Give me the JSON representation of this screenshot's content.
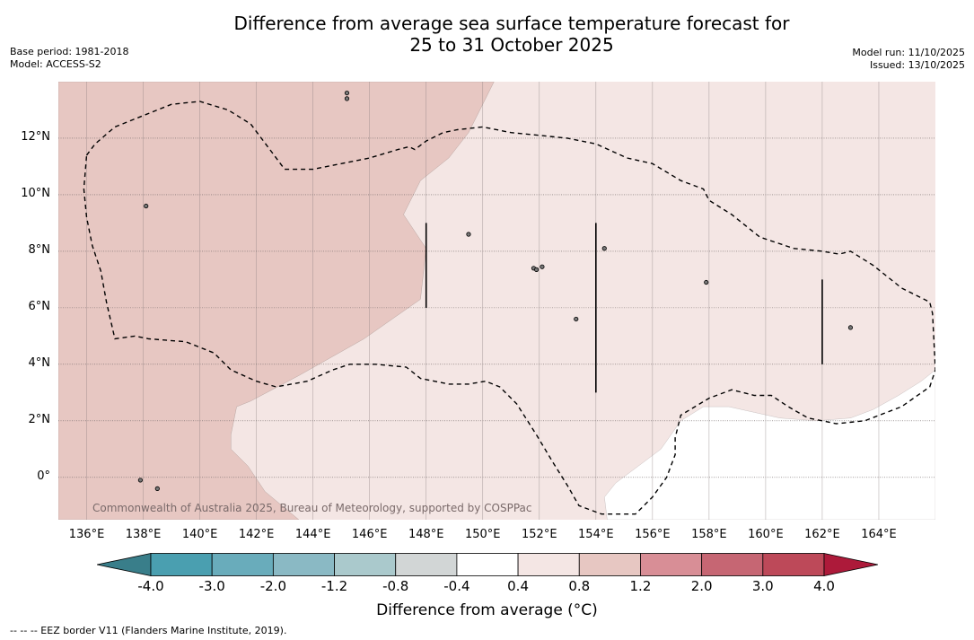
{
  "title_line1": "Difference from average sea surface temperature forecast for",
  "title_line2": "25 to 31 October 2025",
  "meta_left": {
    "base_period": "Base period: 1981-2018",
    "model": "Model: ACCESS-S2"
  },
  "meta_right": {
    "model_run": "Model run: 11/10/2025",
    "issued": "Issued: 13/10/2025"
  },
  "copyright": "Commonwealth of Australia 2025, Bureau of Meteorology, supported by COSPPac",
  "map": {
    "extent": {
      "lon_min": 135.0,
      "lon_max": 166.0,
      "lat_min": -1.5,
      "lat_max": 14.0
    },
    "lon_ticks": [
      {
        "value": 136,
        "label": "136°E"
      },
      {
        "value": 138,
        "label": "138°E"
      },
      {
        "value": 140,
        "label": "140°E"
      },
      {
        "value": 142,
        "label": "142°E"
      },
      {
        "value": 144,
        "label": "144°E"
      },
      {
        "value": 146,
        "label": "146°E"
      },
      {
        "value": 148,
        "label": "148°E"
      },
      {
        "value": 150,
        "label": "150°E"
      },
      {
        "value": 152,
        "label": "152°E"
      },
      {
        "value": 154,
        "label": "154°E"
      },
      {
        "value": 156,
        "label": "156°E"
      },
      {
        "value": 158,
        "label": "158°E"
      },
      {
        "value": 160,
        "label": "160°E"
      },
      {
        "value": 162,
        "label": "162°E"
      },
      {
        "value": 164,
        "label": "164°E"
      }
    ],
    "lat_ticks": [
      {
        "value": 12,
        "label": "12°N"
      },
      {
        "value": 10,
        "label": "10°N"
      },
      {
        "value": 8,
        "label": "8°N"
      },
      {
        "value": 6,
        "label": "6°N"
      },
      {
        "value": 4,
        "label": "4°N"
      },
      {
        "value": 2,
        "label": "2°N"
      },
      {
        "value": 0,
        "label": "0°"
      }
    ],
    "colors": {
      "band_0_8_1_2": "#e7c7c2",
      "band_0_4_0_8": "#f4e6e4",
      "band_neg_0_4_0_4": "#ffffff"
    },
    "warm_region_lonlat": [
      [
        135.0,
        14.0
      ],
      [
        150.4,
        14.0
      ],
      [
        149.5,
        12.2
      ],
      [
        148.8,
        11.3
      ],
      [
        147.8,
        10.5
      ],
      [
        147.2,
        9.3
      ],
      [
        148.0,
        8.1
      ],
      [
        147.8,
        6.3
      ],
      [
        145.8,
        4.9
      ],
      [
        143.5,
        3.6
      ],
      [
        141.8,
        2.7
      ],
      [
        141.3,
        2.5
      ],
      [
        141.1,
        1.5
      ],
      [
        141.1,
        1.0
      ],
      [
        141.7,
        0.4
      ],
      [
        142.3,
        -0.5
      ],
      [
        143.5,
        -1.5
      ],
      [
        135.0,
        -1.5
      ]
    ],
    "white_region_lonlat": [
      [
        166.0,
        -1.5
      ],
      [
        154.4,
        -1.5
      ],
      [
        154.3,
        -0.7
      ],
      [
        154.7,
        -0.2
      ],
      [
        155.5,
        0.4
      ],
      [
        156.3,
        1.0
      ],
      [
        157.0,
        2.0
      ],
      [
        157.8,
        2.5
      ],
      [
        158.7,
        2.5
      ],
      [
        159.6,
        2.3
      ],
      [
        160.5,
        2.1
      ],
      [
        161.8,
        2.0
      ],
      [
        163.0,
        2.1
      ],
      [
        163.8,
        2.4
      ],
      [
        164.7,
        2.9
      ],
      [
        165.5,
        3.4
      ],
      [
        166.0,
        3.8
      ]
    ],
    "eez_west_lonlat": [
      [
        136.0,
        11.4
      ],
      [
        136.3,
        11.8
      ],
      [
        137.0,
        12.4
      ],
      [
        138.0,
        12.8
      ],
      [
        139.0,
        13.2
      ],
      [
        140.0,
        13.3
      ],
      [
        141.0,
        13.0
      ],
      [
        141.8,
        12.5
      ],
      [
        143.0,
        10.9
      ],
      [
        144.0,
        10.9
      ],
      [
        145.0,
        11.1
      ],
      [
        146.0,
        11.3
      ],
      [
        147.0,
        11.6
      ],
      [
        147.4,
        11.7
      ],
      [
        147.6,
        11.6
      ],
      [
        148.0,
        11.9
      ],
      [
        148.6,
        12.2
      ],
      [
        149.1,
        12.3
      ],
      [
        150.0,
        12.4
      ],
      [
        151.0,
        12.2
      ],
      [
        152.0,
        12.1
      ],
      [
        153.0,
        12.0
      ],
      [
        154.0,
        11.8
      ],
      [
        155.1,
        11.3
      ],
      [
        156.0,
        11.1
      ],
      [
        157.0,
        10.5
      ],
      [
        157.8,
        10.2
      ],
      [
        158.0,
        9.8
      ],
      [
        158.8,
        9.3
      ],
      [
        159.8,
        8.5
      ],
      [
        161.0,
        8.1
      ],
      [
        162.0,
        8.0
      ],
      [
        162.6,
        7.9
      ],
      [
        163.0,
        8.0
      ],
      [
        163.8,
        7.5
      ],
      [
        164.8,
        6.7
      ],
      [
        165.8,
        6.2
      ],
      [
        165.9,
        5.8
      ],
      [
        166.0,
        3.8
      ],
      [
        165.8,
        3.2
      ],
      [
        164.8,
        2.5
      ],
      [
        163.5,
        2.0
      ],
      [
        162.5,
        1.9
      ],
      [
        161.5,
        2.1
      ],
      [
        160.8,
        2.5
      ],
      [
        160.2,
        2.9
      ],
      [
        159.6,
        2.9
      ],
      [
        158.8,
        3.1
      ],
      [
        158.0,
        2.8
      ],
      [
        157.5,
        2.5
      ],
      [
        157.0,
        2.2
      ],
      [
        156.8,
        1.4
      ],
      [
        156.8,
        0.8
      ],
      [
        156.5,
        0.0
      ],
      [
        156.0,
        -0.7
      ],
      [
        155.4,
        -1.3
      ],
      [
        154.2,
        -1.3
      ],
      [
        153.4,
        -1.0
      ],
      [
        153.0,
        -0.3
      ],
      [
        152.5,
        0.5
      ],
      [
        151.9,
        1.5
      ],
      [
        151.2,
        2.6
      ],
      [
        150.6,
        3.2
      ],
      [
        150.1,
        3.4
      ],
      [
        149.5,
        3.3
      ],
      [
        148.8,
        3.3
      ],
      [
        147.8,
        3.5
      ],
      [
        147.3,
        3.9
      ],
      [
        146.2,
        4.0
      ],
      [
        145.3,
        4.0
      ],
      [
        144.7,
        3.8
      ],
      [
        143.8,
        3.4
      ],
      [
        142.7,
        3.2
      ],
      [
        142.0,
        3.4
      ],
      [
        141.1,
        3.8
      ],
      [
        140.5,
        4.4
      ],
      [
        140.0,
        4.6
      ],
      [
        139.5,
        4.8
      ],
      [
        138.2,
        4.9
      ],
      [
        137.7,
        5.0
      ],
      [
        137.0,
        4.9
      ],
      [
        136.7,
        6.2
      ],
      [
        136.5,
        7.3
      ],
      [
        136.2,
        8.2
      ],
      [
        136.0,
        9.2
      ],
      [
        135.9,
        10.2
      ],
      [
        136.0,
        11.4
      ]
    ],
    "vertical_lines_lonlat": [
      [
        [
          148.0,
          9.0
        ],
        [
          148.0,
          6.0
        ]
      ],
      [
        [
          154.0,
          9.0
        ],
        [
          154.0,
          3.0
        ]
      ],
      [
        [
          162.0,
          7.0
        ],
        [
          162.0,
          4.0
        ]
      ]
    ],
    "islands_lonlat": [
      [
        145.2,
        13.6
      ],
      [
        145.2,
        13.4
      ],
      [
        138.1,
        9.6
      ],
      [
        151.8,
        7.4
      ],
      [
        151.9,
        7.35
      ],
      [
        152.1,
        7.45
      ],
      [
        157.9,
        6.9
      ],
      [
        163.0,
        5.3
      ],
      [
        153.3,
        5.6
      ],
      [
        154.3,
        8.1
      ],
      [
        149.5,
        8.6
      ],
      [
        137.9,
        -0.1
      ],
      [
        138.5,
        -0.4
      ]
    ]
  },
  "colorbar": {
    "colors": [
      "#397e8a",
      "#4a9fb0",
      "#69acbb",
      "#8ab9c4",
      "#aac9cc",
      "#d2d6d6",
      "#ffffff",
      "#f4e6e4",
      "#e7c7c2",
      "#d88e96",
      "#c66673",
      "#bd4959",
      "#ad1a3a"
    ],
    "labels": [
      "-4.0",
      "-3.0",
      "-2.0",
      "-1.2",
      "-0.8",
      "-0.4",
      "0.4",
      "0.8",
      "1.2",
      "2.0",
      "3.0",
      "4.0"
    ],
    "title": "Difference from average (°C)"
  },
  "footnote": "--  --  -- EEZ border V11 (Flanders Marine Institute, 2019)."
}
